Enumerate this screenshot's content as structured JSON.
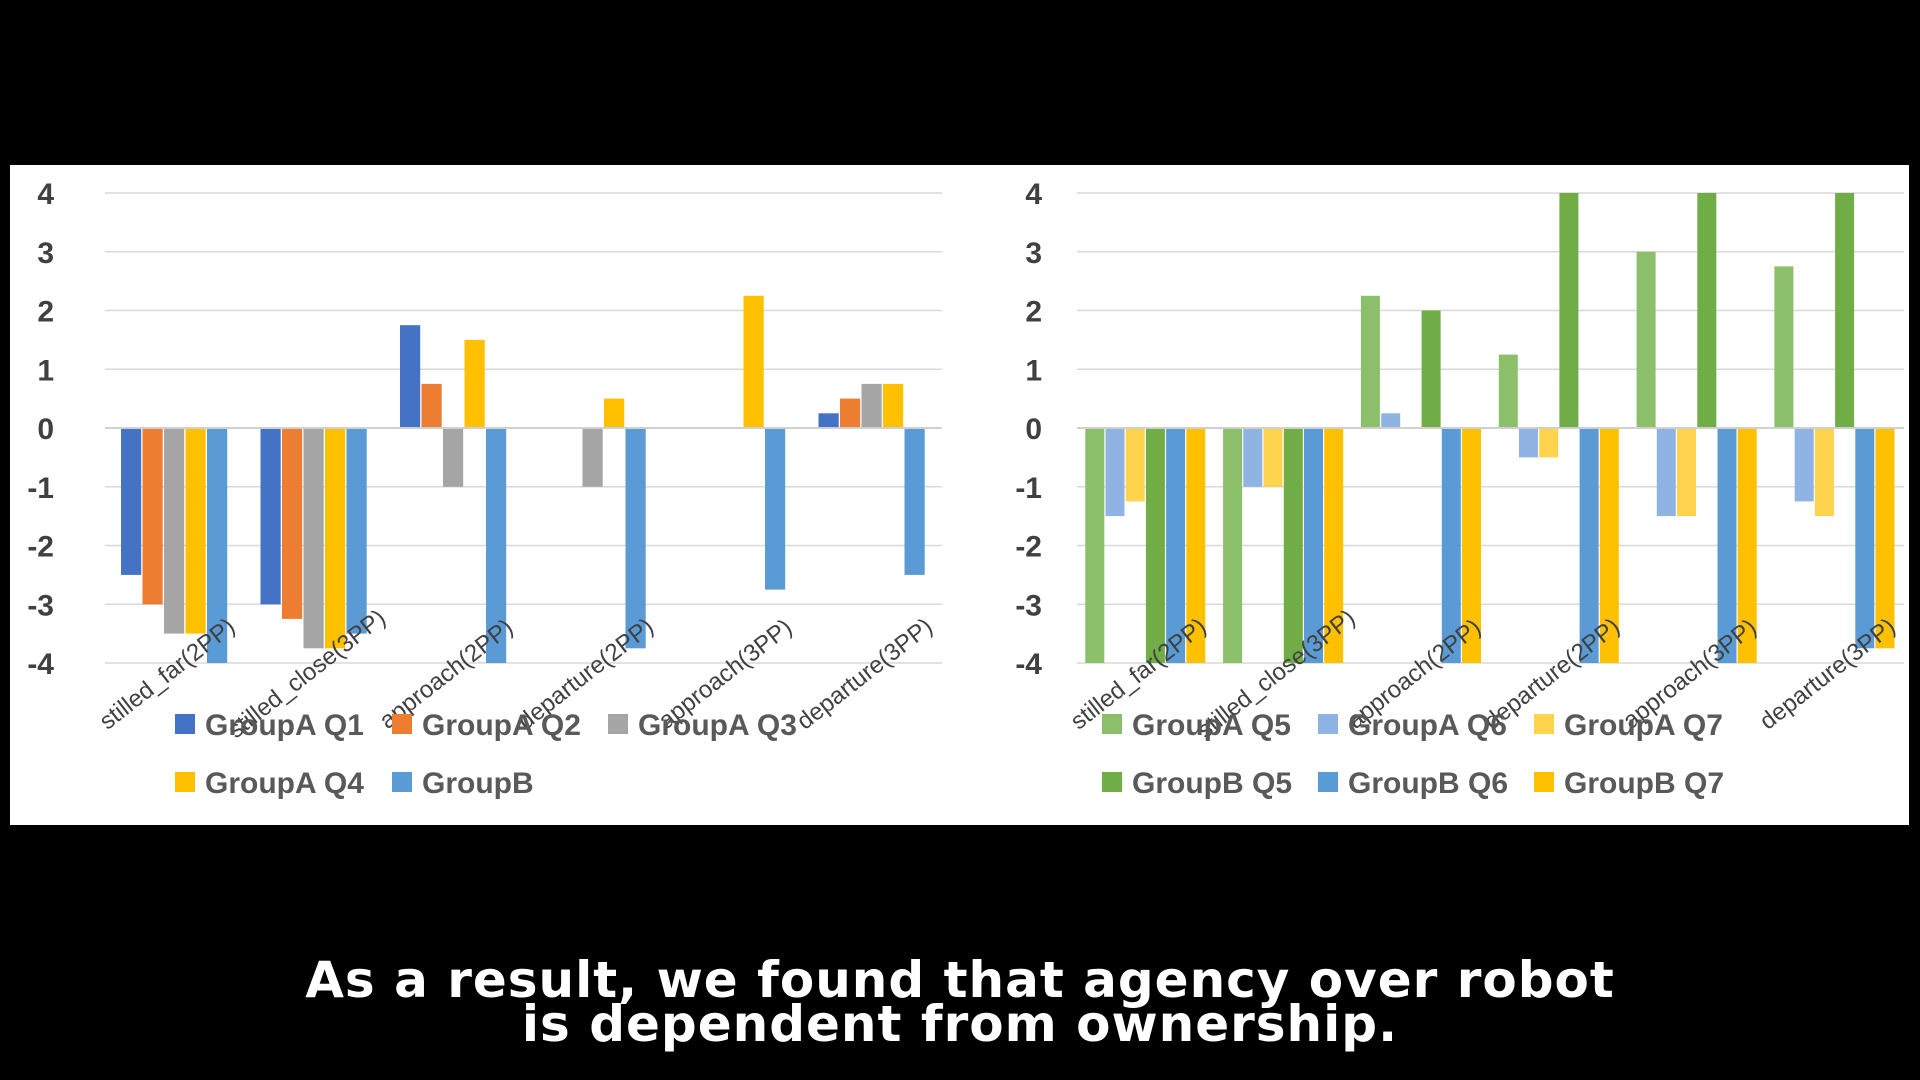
{
  "colors": {
    "groupA_q1": "#4472C4",
    "groupA_q2": "#ED7D31",
    "groupA_q3": "#A5A5A5",
    "groupA_q4": "#FFC000",
    "groupB": "#5B9BD5",
    "groupA_q5": "#8CBF6A",
    "groupA_q6": "#8FB4E3",
    "groupA_q7": "#FFD34D",
    "groupB_q5": "#70AD47",
    "groupB_q6": "#5B9BD5",
    "groupB_q7": "#FFC000"
  },
  "chart_data": [
    {
      "type": "bar",
      "categories": [
        "stilled_far(2PP)",
        "stilled_close(3PP)",
        "approach(2PP)",
        "departure(2PP)",
        "approach(3PP)",
        "departure(3PP)"
      ],
      "ylim": [
        -4,
        4
      ],
      "yticks": [
        "4",
        "3",
        "2",
        "1",
        "0",
        "-1",
        "-2",
        "-3",
        "-4"
      ],
      "grid": true,
      "legend_position": "bottom",
      "series": [
        {
          "name": "GroupA Q1",
          "color": "#4472C4",
          "values": [
            -2.5,
            -3,
            1.75,
            0,
            0,
            0.25
          ]
        },
        {
          "name": "GroupA Q2",
          "color": "#ED7D31",
          "values": [
            -3,
            -3.25,
            0.75,
            0,
            0,
            0.5
          ]
        },
        {
          "name": "GroupA Q3",
          "color": "#A5A5A5",
          "values": [
            -3.5,
            -3.75,
            -1,
            -1,
            0,
            0.75
          ]
        },
        {
          "name": "GroupA Q4",
          "color": "#FFC000",
          "values": [
            -3.5,
            -3.75,
            1.5,
            0.5,
            2.25,
            0.75
          ]
        },
        {
          "name": "GroupB",
          "color": "#5B9BD5",
          "values": [
            -4,
            -3.5,
            -4,
            -3.75,
            -2.75,
            -2.5
          ]
        }
      ]
    },
    {
      "type": "bar",
      "categories": [
        "stilled_far(2PP)",
        "stilled_close(3PP)",
        "approach(2PP)",
        "departure(2PP)",
        "approach(3PP)",
        "departure(3PP)"
      ],
      "ylim": [
        -4,
        4
      ],
      "yticks": [
        "4",
        "3",
        "2",
        "1",
        "0",
        "-1",
        "-2",
        "-3",
        "-4"
      ],
      "grid": true,
      "legend_position": "bottom",
      "series": [
        {
          "name": "GroupA Q5",
          "color": "#8CBF6A",
          "values": [
            -4,
            -4,
            2.25,
            1.25,
            3,
            2.75
          ]
        },
        {
          "name": "GroupA Q6",
          "color": "#8FB4E3",
          "values": [
            -1.5,
            -1,
            0.25,
            -0.5,
            -1.5,
            -1.25
          ]
        },
        {
          "name": "GroupA Q7",
          "color": "#FFD34D",
          "values": [
            -1.25,
            -1,
            0,
            -0.5,
            -1.5,
            -1.5
          ]
        },
        {
          "name": "GroupB Q5",
          "color": "#70AD47",
          "values": [
            -4,
            -4,
            2,
            4,
            4,
            4
          ]
        },
        {
          "name": "GroupB Q6",
          "color": "#5B9BD5",
          "values": [
            -4,
            -4,
            -4,
            -4,
            -4,
            -3.75
          ]
        },
        {
          "name": "GroupB Q7",
          "color": "#FFC000",
          "values": [
            -4,
            -4,
            -4,
            -4,
            -4,
            -3.75
          ]
        }
      ]
    }
  ],
  "subtitle": {
    "line1": "As a result, we found that agency over robot",
    "line2": "is dependent from ownership."
  }
}
